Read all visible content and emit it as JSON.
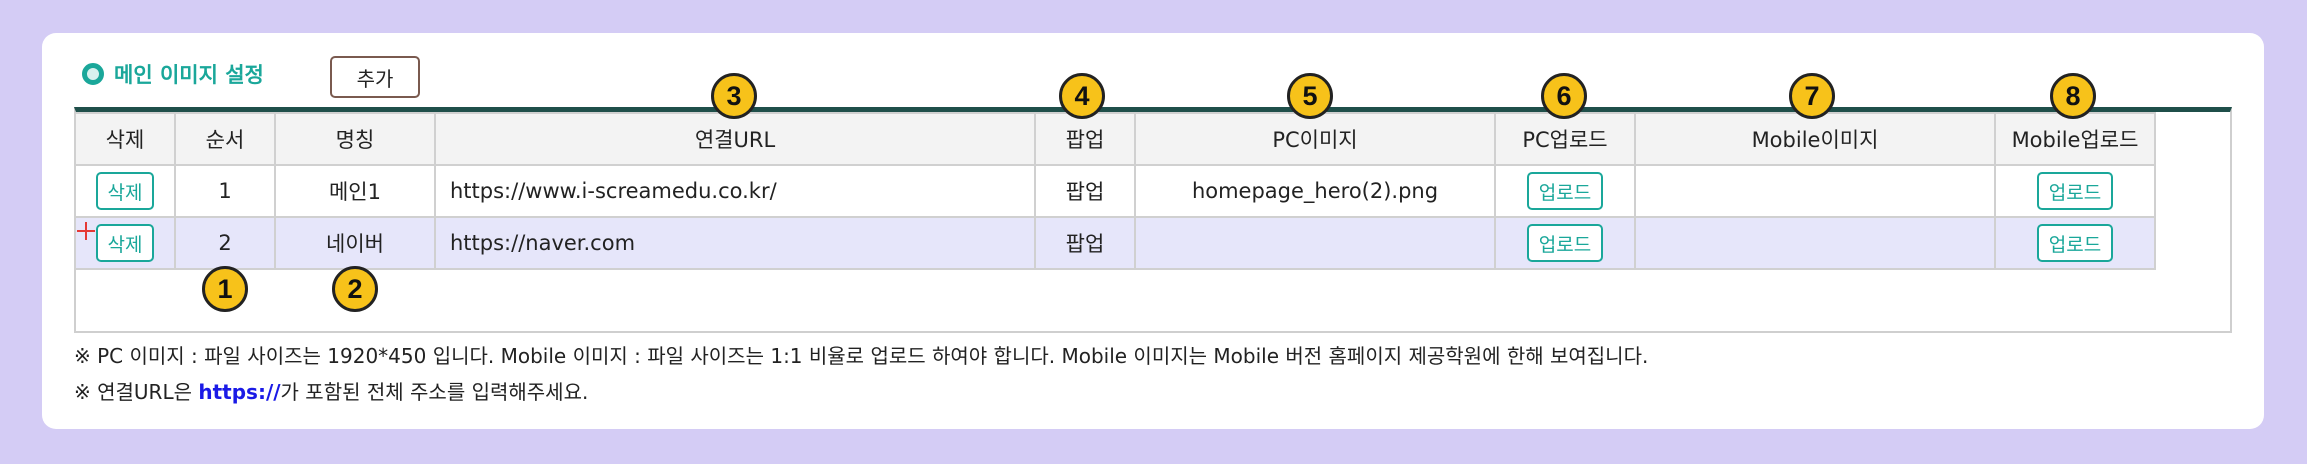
{
  "section": {
    "title": "메인 이미지 설정",
    "add_label": "추가"
  },
  "table": {
    "headers": {
      "delete": "삭제",
      "order": "순서",
      "name": "명칭",
      "url": "연결URL",
      "popup": "팝업",
      "pc_image": "PC이미지",
      "pc_upload": "PC업로드",
      "mobile_image": "Mobile이미지",
      "mobile_upload": "Mobile업로드"
    },
    "rows": [
      {
        "delete_label": "삭제",
        "order": "1",
        "name": "메인1",
        "url": "https://www.i-screamedu.co.kr/",
        "popup": "팝업",
        "pc_image": "homepage_hero(2).png",
        "pc_upload_label": "업로드",
        "mobile_image": "",
        "mobile_upload_label": "업로드"
      },
      {
        "delete_label": "삭제",
        "order": "2",
        "name": "네이버",
        "url": "https://naver.com",
        "popup": "팝업",
        "pc_image": "",
        "pc_upload_label": "업로드",
        "mobile_image": "",
        "mobile_upload_label": "업로드"
      }
    ]
  },
  "badges": [
    "1",
    "2",
    "3",
    "4",
    "5",
    "6",
    "7",
    "8"
  ],
  "notes": {
    "line1": "※ PC 이미지 : 파일 사이즈는 1920*450 입니다. Mobile 이미지 : 파일 사이즈는 1:1 비율로 업로드 하여야 합니다. Mobile 이미지는 Mobile 버전 홈페이지 제공학원에 한해 보여집니다.",
    "line2_prefix": "※ 연결URL은 ",
    "line2_link": "https://",
    "line2_suffix": "가 포함된 전체 주소를 입력해주세요."
  },
  "colors": {
    "background": "#d4ccf5",
    "accent": "#1aa79a",
    "badge": "#f7c21a",
    "row_highlight": "#e6e6fa",
    "link": "#1a1ae6"
  }
}
